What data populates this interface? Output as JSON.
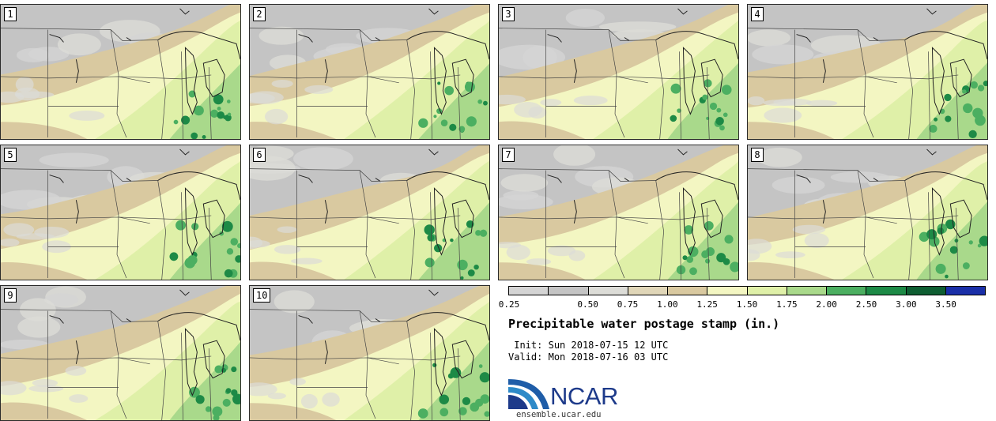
{
  "panels": [
    "1",
    "2",
    "3",
    "4",
    "5",
    "6",
    "7",
    "8",
    "9",
    "10"
  ],
  "colorbar": {
    "ticks": [
      "0.25",
      "0.50",
      "0.75",
      "1.00",
      "1.25",
      "1.50",
      "1.75",
      "2.00",
      "2.50",
      "3.00",
      "3.50"
    ],
    "colors": [
      "#d4d4d4",
      "#c4c4c4",
      "#dcdcd7",
      "#e0d6b8",
      "#d9c9a0",
      "#f3f6c2",
      "#dff0a8",
      "#a9d98b",
      "#4caf61",
      "#1d8a46",
      "#0e5e32",
      "#1a2fa8"
    ]
  },
  "title": "Precipitable water postage stamp (in.)",
  "init_label": " Init:",
  "init_value": "Sun 2018-07-15 12 UTC",
  "valid_label": "Valid:",
  "valid_value": "Mon 2018-07-16 03 UTC",
  "logo": {
    "text": "NCAR",
    "url": "ensemble.ucar.edu"
  }
}
